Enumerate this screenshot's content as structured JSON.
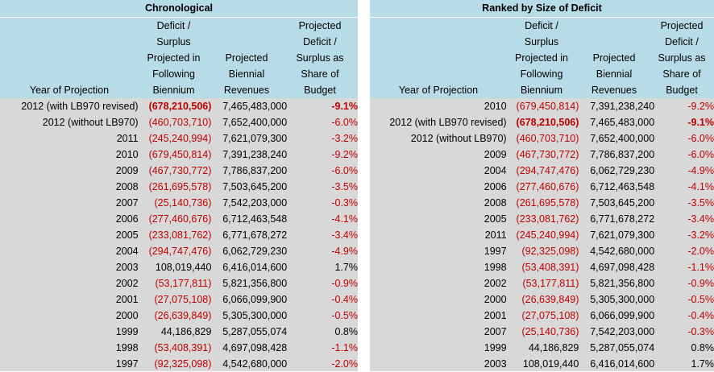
{
  "left": {
    "title": "Chronological",
    "headers": {
      "year": [
        "Year of Projection"
      ],
      "deficit": [
        "Deficit /",
        "Surplus",
        "Projected in",
        "Following",
        "Biennium"
      ],
      "revenue": [
        "Projected",
        "Biennial",
        "Revenues"
      ],
      "share": [
        "Projected",
        "Deficit /",
        "Surplus as",
        "Share of",
        "Budget"
      ]
    },
    "rows": [
      {
        "year": "2012 (with LB970 revised)",
        "deficit": "(678,210,506)",
        "revenue": "7,465,483,000",
        "share": "-9.1%",
        "neg": true,
        "bold": true
      },
      {
        "year": "2012 (without LB970)",
        "deficit": "(460,703,710)",
        "revenue": "7,652,400,000",
        "share": "-6.0%",
        "neg": true,
        "bold": false
      },
      {
        "year": "2011",
        "deficit": "(245,240,994)",
        "revenue": "7,621,079,300",
        "share": "-3.2%",
        "neg": true,
        "bold": false
      },
      {
        "year": "2010",
        "deficit": "(679,450,814)",
        "revenue": "7,391,238,240",
        "share": "-9.2%",
        "neg": true,
        "bold": false
      },
      {
        "year": "2009",
        "deficit": "(467,730,772)",
        "revenue": "7,786,837,200",
        "share": "-6.0%",
        "neg": true,
        "bold": false
      },
      {
        "year": "2008",
        "deficit": "(261,695,578)",
        "revenue": "7,503,645,200",
        "share": "-3.5%",
        "neg": true,
        "bold": false
      },
      {
        "year": "2007",
        "deficit": "(25,140,736)",
        "revenue": "7,542,203,000",
        "share": "-0.3%",
        "neg": true,
        "bold": false
      },
      {
        "year": "2006",
        "deficit": "(277,460,676)",
        "revenue": "6,712,463,548",
        "share": "-4.1%",
        "neg": true,
        "bold": false
      },
      {
        "year": "2005",
        "deficit": "(233,081,762)",
        "revenue": "6,771,678,272",
        "share": "-3.4%",
        "neg": true,
        "bold": false
      },
      {
        "year": "2004",
        "deficit": "(294,747,476)",
        "revenue": "6,062,729,230",
        "share": "-4.9%",
        "neg": true,
        "bold": false
      },
      {
        "year": "2003",
        "deficit": "108,019,440",
        "revenue": "6,416,014,600",
        "share": "1.7%",
        "neg": false,
        "bold": false
      },
      {
        "year": "2002",
        "deficit": "(53,177,811)",
        "revenue": "5,821,356,800",
        "share": "-0.9%",
        "neg": true,
        "bold": false
      },
      {
        "year": "2001",
        "deficit": "(27,075,108)",
        "revenue": "6,066,099,900",
        "share": "-0.4%",
        "neg": true,
        "bold": false
      },
      {
        "year": "2000",
        "deficit": "(26,639,849)",
        "revenue": "5,305,300,000",
        "share": "-0.5%",
        "neg": true,
        "bold": false
      },
      {
        "year": "1999",
        "deficit": "44,186,829",
        "revenue": "5,287,055,074",
        "share": "0.8%",
        "neg": false,
        "bold": false
      },
      {
        "year": "1998",
        "deficit": "(53,408,391)",
        "revenue": "4,697,098,428",
        "share": "-1.1%",
        "neg": true,
        "bold": false
      },
      {
        "year": "1997",
        "deficit": "(92,325,098)",
        "revenue": "4,542,680,000",
        "share": "-2.0%",
        "neg": true,
        "bold": false
      }
    ]
  },
  "right": {
    "title": "Ranked by Size of Deficit",
    "headers": {
      "year": [
        "Year of Projection"
      ],
      "deficit": [
        "Deficit /",
        "Surplus",
        "Projected in",
        "Following",
        "Biennium"
      ],
      "revenue": [
        "Projected",
        "Biennial",
        "Revenues"
      ],
      "share": [
        "Projected",
        "Deficit /",
        "Surplus as",
        "Share of",
        "Budget"
      ]
    },
    "rows": [
      {
        "year": "2010",
        "deficit": "(679,450,814)",
        "revenue": "7,391,238,240",
        "share": "-9.2%",
        "neg": true,
        "bold": false
      },
      {
        "year": "2012 (with LB970 revised)",
        "deficit": "(678,210,506)",
        "revenue": "7,465,483,000",
        "share": "-9.1%",
        "neg": true,
        "bold": true
      },
      {
        "year": "2012 (without LB970)",
        "deficit": "(460,703,710)",
        "revenue": "7,652,400,000",
        "share": "-6.0%",
        "neg": true,
        "bold": false
      },
      {
        "year": "2009",
        "deficit": "(467,730,772)",
        "revenue": "7,786,837,200",
        "share": "-6.0%",
        "neg": true,
        "bold": false
      },
      {
        "year": "2004",
        "deficit": "(294,747,476)",
        "revenue": "6,062,729,230",
        "share": "-4.9%",
        "neg": true,
        "bold": false
      },
      {
        "year": "2006",
        "deficit": "(277,460,676)",
        "revenue": "6,712,463,548",
        "share": "-4.1%",
        "neg": true,
        "bold": false
      },
      {
        "year": "2008",
        "deficit": "(261,695,578)",
        "revenue": "7,503,645,200",
        "share": "-3.5%",
        "neg": true,
        "bold": false
      },
      {
        "year": "2005",
        "deficit": "(233,081,762)",
        "revenue": "6,771,678,272",
        "share": "-3.4%",
        "neg": true,
        "bold": false
      },
      {
        "year": "2011",
        "deficit": "(245,240,994)",
        "revenue": "7,621,079,300",
        "share": "-3.2%",
        "neg": true,
        "bold": false
      },
      {
        "year": "1997",
        "deficit": "(92,325,098)",
        "revenue": "4,542,680,000",
        "share": "-2.0%",
        "neg": true,
        "bold": false
      },
      {
        "year": "1998",
        "deficit": "(53,408,391)",
        "revenue": "4,697,098,428",
        "share": "-1.1%",
        "neg": true,
        "bold": false
      },
      {
        "year": "2002",
        "deficit": "(53,177,811)",
        "revenue": "5,821,356,800",
        "share": "-0.9%",
        "neg": true,
        "bold": false
      },
      {
        "year": "2000",
        "deficit": "(26,639,849)",
        "revenue": "5,305,300,000",
        "share": "-0.5%",
        "neg": true,
        "bold": false
      },
      {
        "year": "2001",
        "deficit": "(27,075,108)",
        "revenue": "6,066,099,900",
        "share": "-0.4%",
        "neg": true,
        "bold": false
      },
      {
        "year": "2007",
        "deficit": "(25,140,736)",
        "revenue": "7,542,203,000",
        "share": "-0.3%",
        "neg": true,
        "bold": false
      },
      {
        "year": "1999",
        "deficit": "44,186,829",
        "revenue": "5,287,055,074",
        "share": "0.8%",
        "neg": false,
        "bold": false
      },
      {
        "year": "2003",
        "deficit": "108,019,440",
        "revenue": "6,416,014,600",
        "share": "1.7%",
        "neg": false,
        "bold": false
      }
    ]
  },
  "colors": {
    "negative": "#c00000",
    "header_bg": "#b8dce7",
    "body_bg": "#d8d8d8"
  }
}
